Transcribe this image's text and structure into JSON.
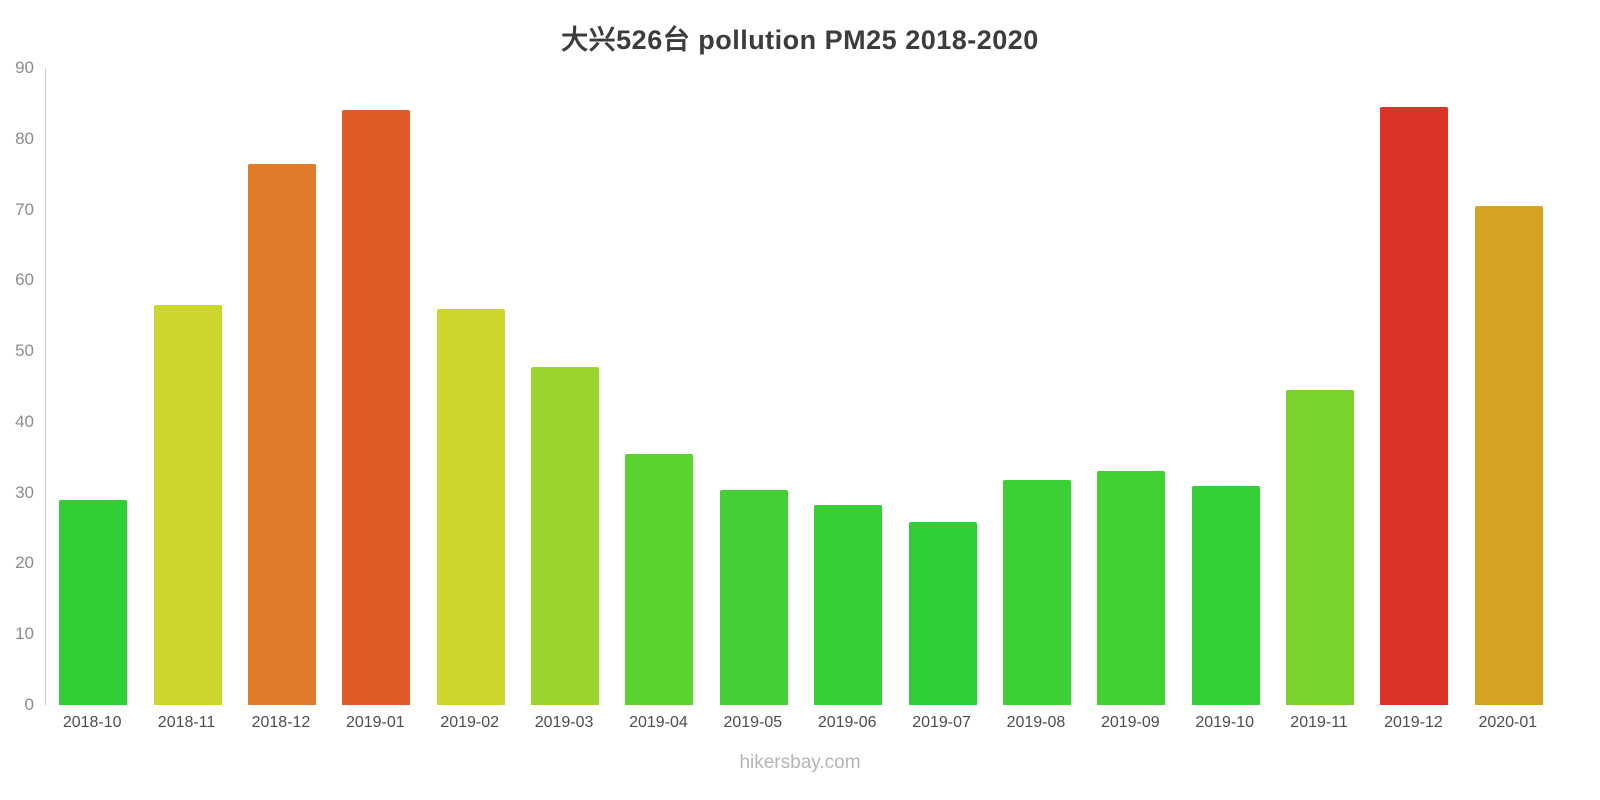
{
  "chart_data": {
    "type": "bar",
    "title": "大兴526台 pollution PM25 2018-2020",
    "categories": [
      "2018-10",
      "2018-11",
      "2018-12",
      "2019-01",
      "2019-02",
      "2019-03",
      "2019-04",
      "2019-05",
      "2019-06",
      "2019-07",
      "2019-08",
      "2019-09",
      "2019-10",
      "2019-11",
      "2019-12",
      "2020-01"
    ],
    "values": [
      29,
      56.5,
      76.5,
      84,
      56,
      47.7,
      35.4,
      30.4,
      28.3,
      25.8,
      31.8,
      33,
      31,
      44.5,
      84.5,
      70.5
    ],
    "bar_colors": [
      "#32cd33",
      "#ccd62d",
      "#e07b2a",
      "#e05b25",
      "#ccd62d",
      "#9ad42c",
      "#5ad331",
      "#44d034",
      "#35cf35",
      "#2fce38",
      "#3bd034",
      "#41d133",
      "#35cf36",
      "#79d32c",
      "#dc3227",
      "#d5a321"
    ],
    "xlabel": "",
    "ylabel": "",
    "ylim": [
      0,
      90
    ],
    "y_ticks": [
      0,
      10,
      20,
      30,
      40,
      50,
      60,
      70,
      80,
      90
    ],
    "grid": false,
    "legend_position": "none"
  },
  "footer": {
    "source": "hikersbay.com"
  }
}
